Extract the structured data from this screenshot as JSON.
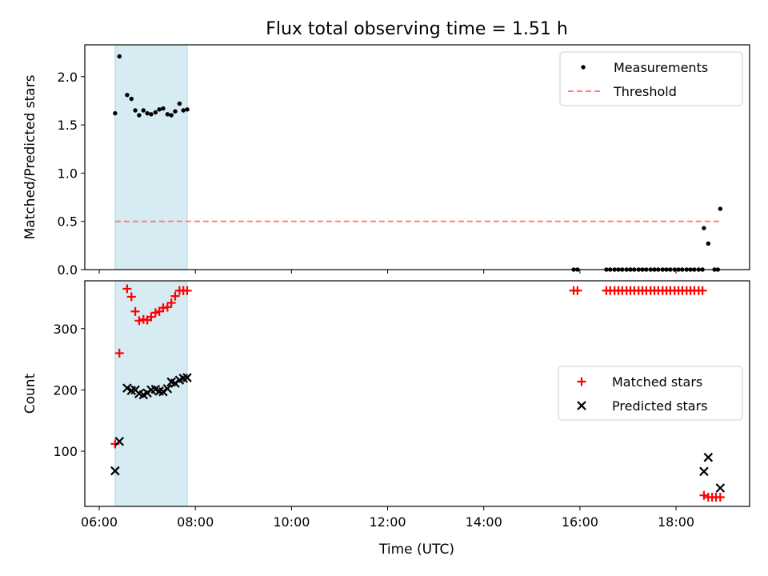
{
  "chart_data": {
    "type": "scatter",
    "title": "Flux total observing time = 1.51 h",
    "xlabel": "Time (UTC)",
    "x_unit": "hours UTC",
    "xlim": [
      5.7,
      19.53
    ],
    "x_ticks": [
      {
        "value": 6,
        "label": "06:00"
      },
      {
        "value": 8,
        "label": "08:00"
      },
      {
        "value": 10,
        "label": "10:00"
      },
      {
        "value": 12,
        "label": "12:00"
      },
      {
        "value": 14,
        "label": "14:00"
      },
      {
        "value": 16,
        "label": "16:00"
      },
      {
        "value": 18,
        "label": "18:00"
      }
    ],
    "shaded_span": {
      "x_start": 6.33,
      "x_end": 7.83,
      "color": "#add8e6"
    },
    "panels": [
      {
        "ylabel": "Matched/Predicted stars",
        "ylim": [
          0,
          2.33
        ],
        "y_ticks": [
          {
            "value": 0.0,
            "label": "0.0"
          },
          {
            "value": 0.5,
            "label": "0.5"
          },
          {
            "value": 1.0,
            "label": "1.0"
          },
          {
            "value": 1.5,
            "label": "1.5"
          },
          {
            "value": 2.0,
            "label": "2.0"
          }
        ],
        "legend_position": "upper right",
        "series": [
          {
            "name": "Measurements",
            "marker": "dot",
            "color": "#000000",
            "x": [
              6.33,
              6.42,
              6.58,
              6.67,
              6.75,
              6.83,
              6.92,
              7.0,
              7.08,
              7.17,
              7.25,
              7.33,
              7.42,
              7.5,
              7.58,
              7.67,
              7.75,
              7.83,
              15.87,
              15.95,
              16.55,
              16.63,
              16.72,
              16.8,
              16.88,
              16.97,
              17.05,
              17.13,
              17.22,
              17.3,
              17.38,
              17.47,
              17.55,
              17.63,
              17.72,
              17.8,
              17.88,
              17.97,
              18.05,
              18.13,
              18.22,
              18.3,
              18.38,
              18.47,
              18.55,
              18.58,
              18.67,
              18.8,
              18.87,
              18.92
            ],
            "y": [
              1.62,
              2.21,
              1.81,
              1.77,
              1.65,
              1.6,
              1.65,
              1.62,
              1.61,
              1.63,
              1.66,
              1.67,
              1.61,
              1.6,
              1.64,
              1.72,
              1.65,
              1.66,
              0,
              0,
              0,
              0,
              0,
              0,
              0,
              0,
              0,
              0,
              0,
              0,
              0,
              0,
              0,
              0,
              0,
              0,
              0,
              0,
              0,
              0,
              0,
              0,
              0,
              0,
              0,
              0.43,
              0.27,
              0,
              0,
              0.63
            ]
          },
          {
            "name": "Threshold",
            "marker": "dashed-line",
            "color": "#ff7f7f",
            "x": [
              6.33,
              18.92
            ],
            "y": [
              0.5,
              0.5
            ]
          }
        ]
      },
      {
        "ylabel": "Count",
        "ylim": [
          10,
          378
        ],
        "y_ticks": [
          {
            "value": 100,
            "label": "100"
          },
          {
            "value": 200,
            "label": "200"
          },
          {
            "value": 300,
            "label": "300"
          }
        ],
        "legend_position": "center right",
        "series": [
          {
            "name": "Matched stars",
            "marker": "plus",
            "color": "#ff0000",
            "x": [
              6.33,
              6.42,
              6.58,
              6.67,
              6.75,
              6.83,
              6.92,
              7.0,
              7.08,
              7.17,
              7.25,
              7.33,
              7.42,
              7.5,
              7.58,
              7.67,
              7.75,
              7.83,
              15.87,
              15.95,
              16.55,
              16.63,
              16.72,
              16.8,
              16.88,
              16.97,
              17.05,
              17.13,
              17.22,
              17.3,
              17.38,
              17.47,
              17.55,
              17.63,
              17.72,
              17.8,
              17.88,
              17.97,
              18.05,
              18.13,
              18.22,
              18.3,
              18.38,
              18.47,
              18.55,
              18.58,
              18.67,
              18.75,
              18.83,
              18.92
            ],
            "y": [
              112,
              260,
              365,
              352,
              328,
              313,
              315,
              314,
              319,
              326,
              328,
              334,
              335,
              342,
              353,
              362,
              362,
              362,
              362,
              362,
              362,
              362,
              362,
              362,
              362,
              362,
              362,
              362,
              362,
              362,
              362,
              362,
              362,
              362,
              362,
              362,
              362,
              362,
              362,
              362,
              362,
              362,
              362,
              362,
              362,
              28,
              25,
              25,
              25,
              25
            ]
          },
          {
            "name": "Predicted stars",
            "marker": "x",
            "color": "#000000",
            "x": [
              6.33,
              6.42,
              6.58,
              6.67,
              6.75,
              6.83,
              6.92,
              7.0,
              7.08,
              7.17,
              7.25,
              7.33,
              7.42,
              7.5,
              7.58,
              7.67,
              7.75,
              7.83,
              18.58,
              18.67,
              18.92
            ],
            "y": [
              68,
              116,
              203,
              199,
              200,
              194,
              192,
              195,
              200,
              201,
              198,
              197,
              202,
              213,
              211,
              216,
              219,
              220,
              67,
              90,
              40
            ]
          }
        ]
      }
    ]
  }
}
